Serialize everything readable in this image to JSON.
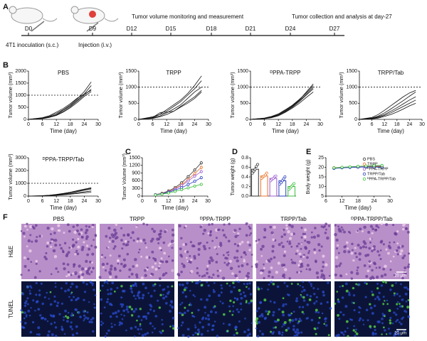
{
  "timeline": {
    "days": [
      "D0",
      "D9",
      "D12",
      "D15",
      "D18",
      "D21",
      "D24",
      "D27"
    ],
    "steps": [
      "Tumor volume monitoring and measurement",
      "Tumor collection and analysis at day-27"
    ],
    "inoculation": "4T1 inoculation (s.c.)",
    "injection": "Injection (i.v.)"
  },
  "panel_labels": [
    "A",
    "B",
    "C",
    "D",
    "E",
    "F"
  ],
  "chart_data": [
    {
      "type": "line",
      "title": "PBS",
      "xlabel": "Time (day)",
      "ylabel": "Tumor volume (mm³)",
      "x": [
        0,
        6,
        9,
        12,
        15,
        18,
        21,
        24,
        27
      ],
      "xlim": [
        0,
        30
      ],
      "xticks": [
        0,
        6,
        12,
        18,
        24,
        30
      ],
      "ylim": [
        0,
        2000
      ],
      "yticks": [
        0,
        500,
        1000,
        1500,
        2000
      ],
      "hline": 1000,
      "series": [
        {
          "color": "#111111",
          "values": [
            0,
            60,
            120,
            250,
            400,
            600,
            850,
            1150,
            1550
          ]
        },
        {
          "color": "#111111",
          "values": [
            0,
            50,
            100,
            200,
            380,
            560,
            800,
            1050,
            1400
          ]
        },
        {
          "color": "#111111",
          "values": [
            0,
            40,
            90,
            180,
            330,
            520,
            760,
            1000,
            1250
          ]
        },
        {
          "color": "#111111",
          "values": [
            0,
            70,
            150,
            300,
            450,
            650,
            880,
            1050,
            1200
          ]
        },
        {
          "color": "#111111",
          "values": [
            0,
            30,
            80,
            160,
            300,
            480,
            700,
            950,
            1150
          ]
        }
      ]
    },
    {
      "type": "line",
      "title": "TRPP",
      "xlabel": "Time (day)",
      "ylabel": "Tumor volume (mm³)",
      "x": [
        0,
        6,
        9,
        12,
        15,
        18,
        21,
        24,
        27
      ],
      "xlim": [
        0,
        30
      ],
      "xticks": [
        0,
        6,
        12,
        18,
        24,
        30
      ],
      "ylim": [
        0,
        1500
      ],
      "yticks": [
        0,
        500,
        1000,
        1500
      ],
      "hline": 1000,
      "series": [
        {
          "color": "#111111",
          "values": [
            0,
            80,
            150,
            300,
            450,
            600,
            800,
            1050,
            1350
          ]
        },
        {
          "color": "#111111",
          "values": [
            0,
            60,
            200,
            250,
            400,
            550,
            750,
            950,
            1200
          ]
        },
        {
          "color": "#111111",
          "values": [
            0,
            40,
            100,
            200,
            320,
            450,
            650,
            850,
            1000
          ]
        },
        {
          "color": "#111111",
          "values": [
            0,
            50,
            150,
            220,
            250,
            400,
            550,
            700,
            900
          ]
        },
        {
          "color": "#111111",
          "values": [
            0,
            30,
            80,
            150,
            250,
            380,
            500,
            650,
            850
          ]
        }
      ]
    },
    {
      "type": "line",
      "title": "ᴰPPA-TRPP",
      "xlabel": "Time (day)",
      "ylabel": "Tumor volume (mm³)",
      "x": [
        0,
        6,
        9,
        12,
        15,
        18,
        21,
        24,
        27
      ],
      "xlim": [
        0,
        30
      ],
      "xticks": [
        0,
        6,
        12,
        18,
        24,
        30
      ],
      "ylim": [
        0,
        1500
      ],
      "yticks": [
        0,
        500,
        1000,
        1500
      ],
      "hline": 1000,
      "series": [
        {
          "color": "#111111",
          "values": [
            0,
            30,
            80,
            150,
            280,
            420,
            600,
            850,
            1100
          ]
        },
        {
          "color": "#111111",
          "values": [
            0,
            40,
            90,
            170,
            300,
            440,
            620,
            820,
            1050
          ]
        },
        {
          "color": "#111111",
          "values": [
            0,
            35,
            70,
            140,
            260,
            400,
            580,
            780,
            1000
          ]
        },
        {
          "color": "#111111",
          "values": [
            0,
            25,
            60,
            120,
            240,
            380,
            550,
            750,
            950
          ]
        },
        {
          "color": "#111111",
          "values": [
            0,
            20,
            50,
            110,
            220,
            350,
            500,
            680,
            850
          ]
        }
      ]
    },
    {
      "type": "line",
      "title": "TRPP/Tab",
      "xlabel": "Time (day)",
      "ylabel": "Tumor volume (mm³)",
      "x": [
        0,
        6,
        9,
        12,
        15,
        18,
        21,
        24,
        27
      ],
      "xlim": [
        0,
        30
      ],
      "xticks": [
        0,
        6,
        12,
        18,
        24,
        30
      ],
      "ylim": [
        0,
        1500
      ],
      "yticks": [
        0,
        500,
        1000,
        1500
      ],
      "hline": 1000,
      "series": [
        {
          "color": "#111111",
          "values": [
            0,
            60,
            150,
            280,
            420,
            560,
            700,
            820,
            900
          ]
        },
        {
          "color": "#111111",
          "values": [
            0,
            40,
            100,
            200,
            320,
            450,
            580,
            720,
            850
          ]
        },
        {
          "color": "#111111",
          "values": [
            0,
            30,
            80,
            150,
            250,
            360,
            480,
            600,
            700
          ]
        },
        {
          "color": "#111111",
          "values": [
            0,
            20,
            60,
            120,
            200,
            300,
            400,
            500,
            600
          ]
        },
        {
          "color": "#111111",
          "values": [
            0,
            15,
            40,
            90,
            150,
            230,
            320,
            420,
            500
          ]
        }
      ]
    },
    {
      "type": "line",
      "title": "ᴰPPA-TRPP/Tab",
      "xlabel": "Time (day)",
      "ylabel": "Tumor volume (mm³)",
      "x": [
        0,
        6,
        9,
        12,
        15,
        18,
        21,
        24,
        27
      ],
      "xlim": [
        0,
        30
      ],
      "xticks": [
        0,
        6,
        12,
        18,
        24,
        30
      ],
      "ylim": [
        0,
        3000
      ],
      "yticks": [
        0,
        1000,
        2000,
        3000
      ],
      "hline": 1000,
      "series": [
        {
          "color": "#111111",
          "values": [
            0,
            20,
            60,
            120,
            200,
            300,
            420,
            540,
            650
          ]
        },
        {
          "color": "#111111",
          "values": [
            0,
            30,
            70,
            130,
            210,
            300,
            400,
            500,
            600
          ]
        },
        {
          "color": "#111111",
          "values": [
            0,
            15,
            50,
            100,
            170,
            250,
            350,
            450,
            550
          ]
        },
        {
          "color": "#111111",
          "values": [
            0,
            10,
            40,
            80,
            130,
            190,
            260,
            330,
            400
          ]
        },
        {
          "color": "#111111",
          "values": [
            0,
            10,
            30,
            60,
            100,
            150,
            200,
            250,
            300
          ]
        }
      ]
    },
    {
      "type": "line",
      "markers": true,
      "xlabel": "Time  (day)",
      "ylabel": "Tumor Volume (mm³)",
      "x": [
        6,
        9,
        12,
        15,
        18,
        21,
        24,
        27
      ],
      "xlim": [
        0,
        30
      ],
      "xticks": [
        0,
        6,
        12,
        18,
        24,
        30
      ],
      "ylim": [
        0,
        1500
      ],
      "yticks": [
        0,
        300,
        600,
        900,
        1200,
        1500
      ],
      "series": [
        {
          "color": "#333333",
          "values": [
            60,
            110,
            200,
            330,
            520,
            760,
            1020,
            1300
          ],
          "errors": [
            10,
            15,
            20,
            30,
            40,
            50,
            60,
            70
          ]
        },
        {
          "color": "#e8732a",
          "values": [
            55,
            100,
            180,
            290,
            450,
            650,
            880,
            1120
          ],
          "errors": [
            10,
            15,
            20,
            30,
            40,
            50,
            60,
            70
          ]
        },
        {
          "color": "#9b59d0",
          "values": [
            55,
            95,
            170,
            270,
            410,
            590,
            780,
            960
          ],
          "errors": [
            10,
            15,
            20,
            25,
            35,
            45,
            55,
            65
          ]
        },
        {
          "color": "#2b3fbf",
          "values": [
            50,
            85,
            150,
            230,
            330,
            450,
            580,
            720
          ],
          "errors": [
            10,
            12,
            18,
            25,
            30,
            40,
            50,
            60
          ]
        },
        {
          "color": "#3cbf3c",
          "values": [
            45,
            75,
            120,
            180,
            250,
            320,
            390,
            460
          ],
          "errors": [
            8,
            10,
            15,
            20,
            25,
            30,
            40,
            50
          ]
        }
      ]
    },
    {
      "type": "bar",
      "ylabel": "Tumor weight (g)",
      "ylim": [
        0,
        0.8
      ],
      "yticks": [
        {
          "value": 0,
          "label": "0.0"
        },
        0.2,
        0.4,
        0.6,
        0.8
      ],
      "values": [
        0.56,
        0.42,
        0.37,
        0.32,
        0.2
      ],
      "errors": [
        0.05,
        0.03,
        0.03,
        0.04,
        0.03
      ],
      "colors": [
        "#333333",
        "#e8732a",
        "#9b59d0",
        "#2b3fbf",
        "#3cbf3c"
      ],
      "points": [
        [
          0.48,
          0.52,
          0.56,
          0.62,
          0.66
        ],
        [
          0.37,
          0.4,
          0.42,
          0.44,
          0.48
        ],
        [
          0.32,
          0.35,
          0.37,
          0.4,
          0.42
        ],
        [
          0.25,
          0.28,
          0.32,
          0.36,
          0.4
        ],
        [
          0.14,
          0.17,
          0.2,
          0.23,
          0.26
        ]
      ]
    },
    {
      "type": "line",
      "markers": true,
      "legend": "upper right",
      "xlabel": "Time (day)",
      "ylabel": "Body weight (g)",
      "x": [
        9,
        12,
        15,
        18,
        21,
        24,
        27
      ],
      "xlim": [
        6,
        30
      ],
      "xticks": [
        6,
        12,
        18,
        24,
        30
      ],
      "ylim": [
        5,
        25
      ],
      "yticks": [
        5,
        10,
        15,
        20,
        25
      ],
      "series": [
        {
          "name": "PBS",
          "color": "#333333",
          "values": [
            19.5,
            19.8,
            20,
            20.2,
            20.1,
            20.3,
            20.2
          ]
        },
        {
          "name": "TRPP",
          "color": "#e8732a",
          "values": [
            19.8,
            20,
            20.2,
            20.4,
            20.5,
            20.6,
            20.5
          ]
        },
        {
          "name": "ᴰPPA-TRPP",
          "color": "#9b59d0",
          "values": [
            19.6,
            19.9,
            20.1,
            20.3,
            20.6,
            20.8,
            20.7
          ]
        },
        {
          "name": "TRPP/Tab",
          "color": "#2b3fbf",
          "values": [
            19.4,
            19.7,
            19.9,
            20,
            20.2,
            20.1,
            20
          ]
        },
        {
          "name": "ᴰPPA-TRPP/Tab",
          "color": "#3cbf3c",
          "values": [
            19.7,
            20,
            20.3,
            20.5,
            20.7,
            20.9,
            21
          ]
        }
      ]
    }
  ],
  "histology": {
    "groups": [
      "PBS",
      "TRPP",
      "ᴰPPA-TRPP",
      "TRPP/Tab",
      "ᴰPPA-TRPP/Tab"
    ],
    "rows": [
      "H&E",
      "TUNEL"
    ],
    "scale_bars": [
      "20 μm",
      "20 μm"
    ]
  }
}
